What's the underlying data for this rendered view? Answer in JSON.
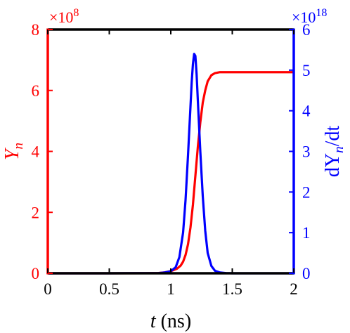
{
  "chart_data": {
    "type": "line",
    "xlabel": {
      "var": "t",
      "unit": " (ns)"
    },
    "ylabel_left": {
      "base": "Y",
      "sub": "n"
    },
    "ylabel_right": {
      "prefix": "dY",
      "sub": "n",
      "suffix": "/dt"
    },
    "xlim": [
      0,
      2
    ],
    "ylim_left": [
      0,
      8
    ],
    "ylim_right": [
      0,
      6
    ],
    "xticks": [
      "0",
      "0.5",
      "1",
      "1.5",
      "2"
    ],
    "yticks_left": [
      "0",
      "2",
      "4",
      "6",
      "8"
    ],
    "yticks_right": [
      "0",
      "1",
      "2",
      "3",
      "4",
      "5",
      "6"
    ],
    "left_multiplier": {
      "base": "×10",
      "exp": "8"
    },
    "right_multiplier": {
      "base": "×10",
      "exp": "18"
    },
    "colors": {
      "left": "#ff0000",
      "right": "#0000ff",
      "frame": "#000000"
    },
    "series": [
      {
        "axis": "left",
        "color": "#ff0000",
        "x": [
          0,
          0.5,
          0.8,
          0.9,
          0.95,
          1.0,
          1.05,
          1.08,
          1.1,
          1.12,
          1.14,
          1.16,
          1.18,
          1.2,
          1.22,
          1.24,
          1.26,
          1.28,
          1.3,
          1.33,
          1.36,
          1.4,
          1.45,
          1.5,
          1.6,
          2.0
        ],
        "y": [
          0,
          0,
          0.002,
          0.01,
          0.03,
          0.07,
          0.15,
          0.25,
          0.38,
          0.6,
          0.95,
          1.5,
          2.25,
          3.2,
          4.15,
          4.95,
          5.6,
          6.0,
          6.3,
          6.5,
          6.57,
          6.6,
          6.6,
          6.6,
          6.6,
          6.6
        ]
      },
      {
        "axis": "right",
        "color": "#0000ff",
        "x": [
          0,
          0.5,
          0.9,
          0.95,
          1.0,
          1.04,
          1.07,
          1.1,
          1.12,
          1.14,
          1.16,
          1.17,
          1.18,
          1.19,
          1.2,
          1.21,
          1.22,
          1.24,
          1.26,
          1.28,
          1.3,
          1.33,
          1.36,
          1.4,
          1.45,
          1.5,
          2.0
        ],
        "y": [
          0,
          0,
          0.005,
          0.02,
          0.05,
          0.15,
          0.4,
          1.0,
          1.8,
          2.9,
          4.1,
          4.7,
          5.15,
          5.4,
          5.35,
          4.9,
          4.25,
          3.0,
          1.9,
          1.05,
          0.5,
          0.18,
          0.06,
          0.02,
          0.005,
          0,
          0
        ]
      }
    ]
  }
}
